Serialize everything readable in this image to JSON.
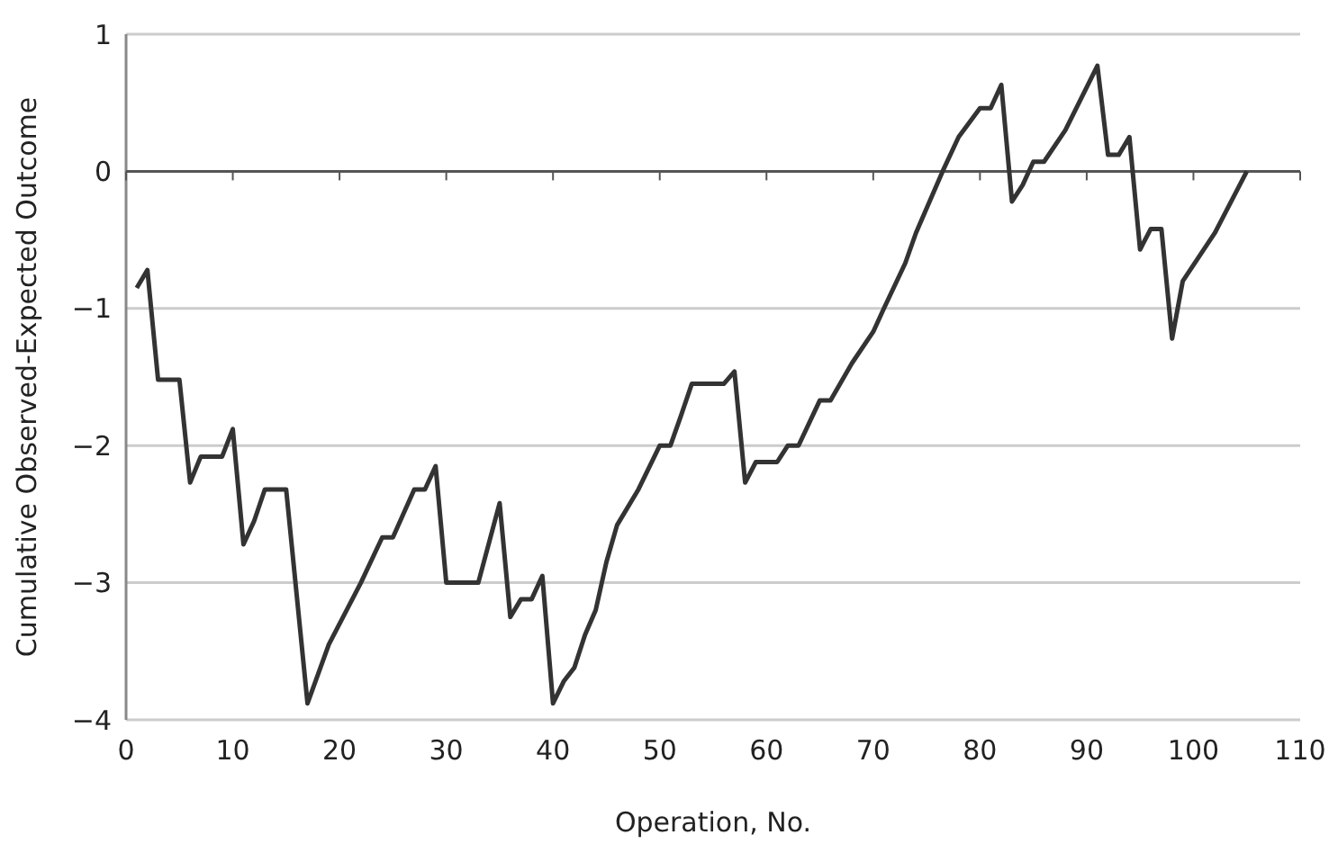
{
  "chart_data": {
    "type": "line",
    "xlabel": "Operation, No.",
    "ylabel": "Cumulative Observed-Expected Outcome",
    "xlim": [
      0,
      110
    ],
    "ylim": [
      -4,
      1
    ],
    "xticks": [
      0,
      10,
      20,
      30,
      40,
      50,
      60,
      70,
      80,
      90,
      100,
      110
    ],
    "yticks": [
      {
        "value": -4,
        "label": "−4"
      },
      {
        "value": -3,
        "label": "−3"
      },
      {
        "value": -2,
        "label": "−2"
      },
      {
        "value": -1,
        "label": "−1"
      },
      0,
      1
    ],
    "grid": "y",
    "marker": "none",
    "line_style": "solid",
    "series": [
      {
        "color": "#333333",
        "x": [
          1,
          2,
          3,
          5,
          6,
          7,
          9,
          10,
          11,
          12,
          13,
          15,
          17,
          19,
          22,
          24,
          25,
          27,
          28,
          29,
          30,
          33,
          35,
          36,
          37,
          38,
          39,
          40,
          41,
          42,
          43,
          44,
          45,
          46,
          48,
          50,
          51,
          52,
          53,
          56,
          57,
          58,
          59,
          61,
          62,
          63,
          65,
          66,
          68,
          70,
          71,
          73,
          74,
          76.5,
          78,
          80,
          81,
          82,
          83,
          84,
          85,
          86,
          88,
          91,
          92,
          93,
          94,
          95,
          96,
          97,
          98,
          99,
          102,
          105
        ],
        "values": [
          -0.85,
          -0.72,
          -1.52,
          -1.52,
          -2.27,
          -2.08,
          -2.08,
          -1.88,
          -2.72,
          -2.55,
          -2.32,
          -2.32,
          -3.88,
          -3.45,
          -3.0,
          -2.67,
          -2.67,
          -2.32,
          -2.32,
          -2.15,
          -3.0,
          -3.0,
          -2.42,
          -3.25,
          -3.12,
          -3.12,
          -2.95,
          -3.88,
          -3.72,
          -3.62,
          -3.38,
          -3.2,
          -2.85,
          -2.58,
          -2.32,
          -2.0,
          -2.0,
          -1.78,
          -1.55,
          -1.55,
          -1.46,
          -2.27,
          -2.12,
          -2.12,
          -2.0,
          -2.0,
          -1.67,
          -1.67,
          -1.4,
          -1.17,
          -1.0,
          -0.67,
          -0.45,
          0,
          0.25,
          0.46,
          0.46,
          0.63,
          -0.22,
          -0.1,
          0.07,
          0.07,
          0.3,
          0.77,
          0.12,
          0.12,
          0.25,
          -0.57,
          -0.42,
          -0.42,
          -1.22,
          -0.8,
          -0.45,
          0
        ]
      }
    ]
  }
}
